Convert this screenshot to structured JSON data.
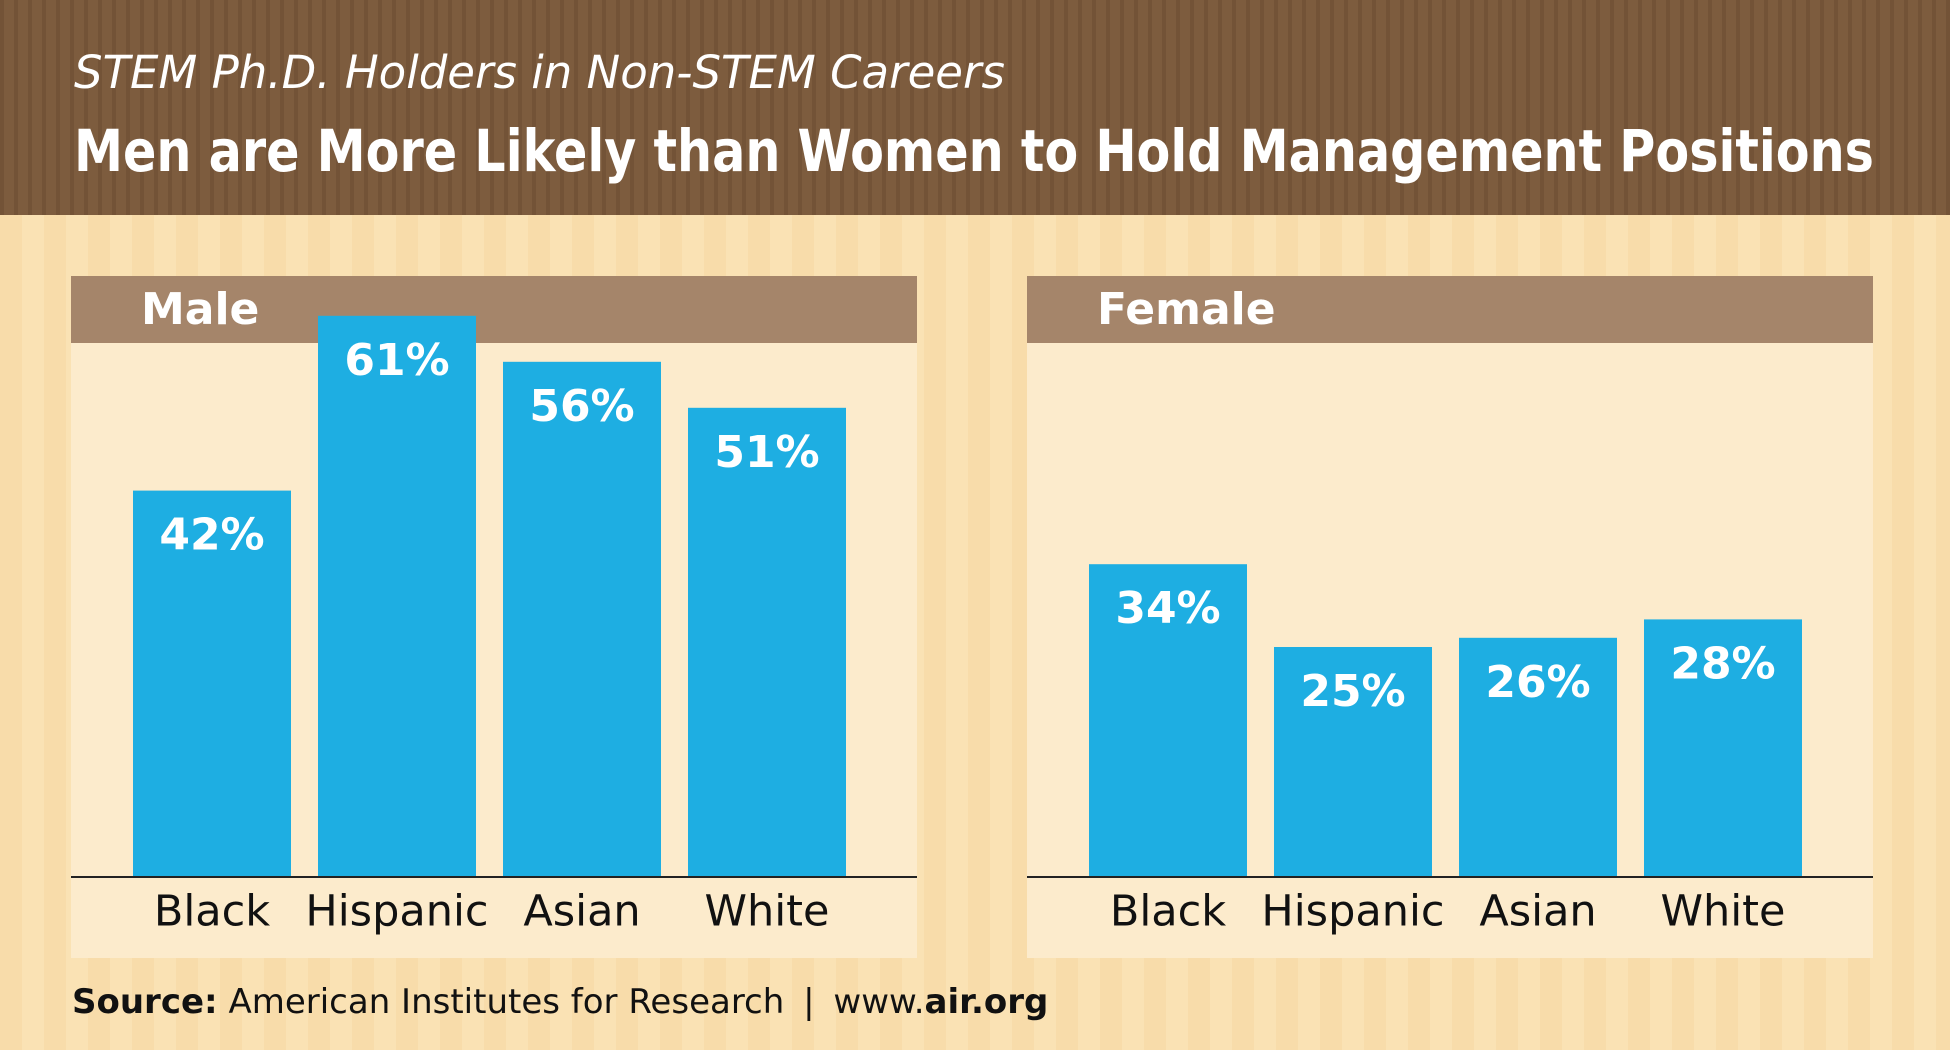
{
  "header": {
    "subtitle": "STEM Ph.D. Holders in Non-STEM Careers",
    "title": "Men are More Likely than Women to Hold Management Positions"
  },
  "chart_data": [
    {
      "type": "bar",
      "title": "Male",
      "categories": [
        "Black",
        "Hispanic",
        "Asian",
        "White"
      ],
      "values": [
        42,
        61,
        56,
        51
      ],
      "value_labels": [
        "42%",
        "61%",
        "56%",
        "51%"
      ],
      "color": "#1eaee2"
    },
    {
      "type": "bar",
      "title": "Female",
      "categories": [
        "Black",
        "Hispanic",
        "Asian",
        "White"
      ],
      "values": [
        34,
        25,
        26,
        28
      ],
      "value_labels": [
        "34%",
        "25%",
        "26%",
        "28%"
      ],
      "color": "#1eaee2"
    }
  ],
  "source": {
    "label": "Source:",
    "name": "American Institutes for Research",
    "separator": "|",
    "site_prefix": "www.",
    "site": "air.org"
  }
}
